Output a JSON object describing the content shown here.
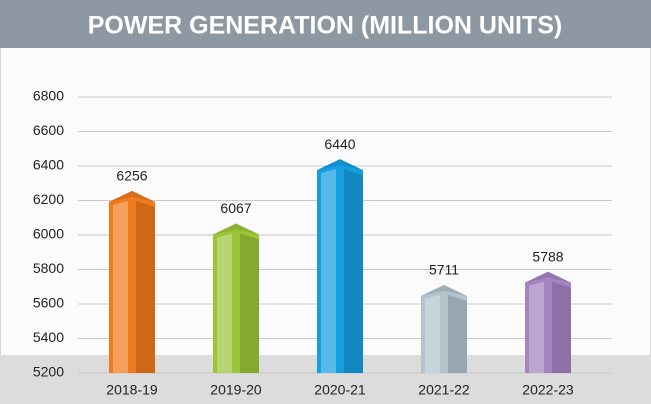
{
  "chart_data": {
    "type": "bar",
    "title": "POWER GENERATION (MILLION UNITS)",
    "categories": [
      "2018-19",
      "2019-20",
      "2020-21",
      "2021-22",
      "2022-23"
    ],
    "values": [
      6256,
      6067,
      6440,
      5711,
      5788
    ],
    "colors": [
      "#f07a1e",
      "#9cc43a",
      "#159ee0",
      "#b4c2cc",
      "#a584c2"
    ],
    "ylim": [
      5200,
      6800
    ],
    "yticks": [
      5200,
      5400,
      5600,
      5800,
      6000,
      6200,
      6400,
      6600,
      6800
    ],
    "grid": true
  }
}
